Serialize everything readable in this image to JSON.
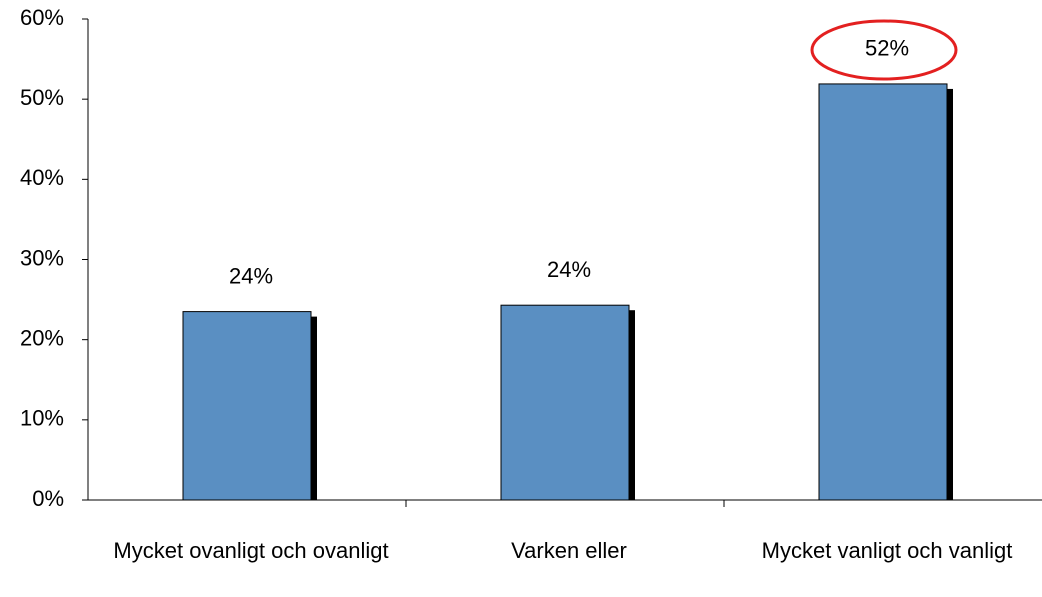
{
  "chart_data": {
    "type": "bar",
    "categories": [
      "Mycket ovanligt och ovanligt",
      "Varken eller",
      "Mycket vanligt och vanligt"
    ],
    "values": [
      23.5,
      24.3,
      51.9
    ],
    "value_labels": [
      "24%",
      "24%",
      "52%"
    ],
    "color": "#5a8fc2",
    "ylim": [
      0,
      60
    ],
    "yticks": [
      {
        "value": 0,
        "label": "0%"
      },
      {
        "value": 10,
        "label": "10%"
      },
      {
        "value": 20,
        "label": "20%"
      },
      {
        "value": 30,
        "label": "30%"
      },
      {
        "value": 40,
        "label": "40%"
      },
      {
        "value": 50,
        "label": "50%"
      },
      {
        "value": 60,
        "label": "60%"
      }
    ],
    "grid": false
  }
}
